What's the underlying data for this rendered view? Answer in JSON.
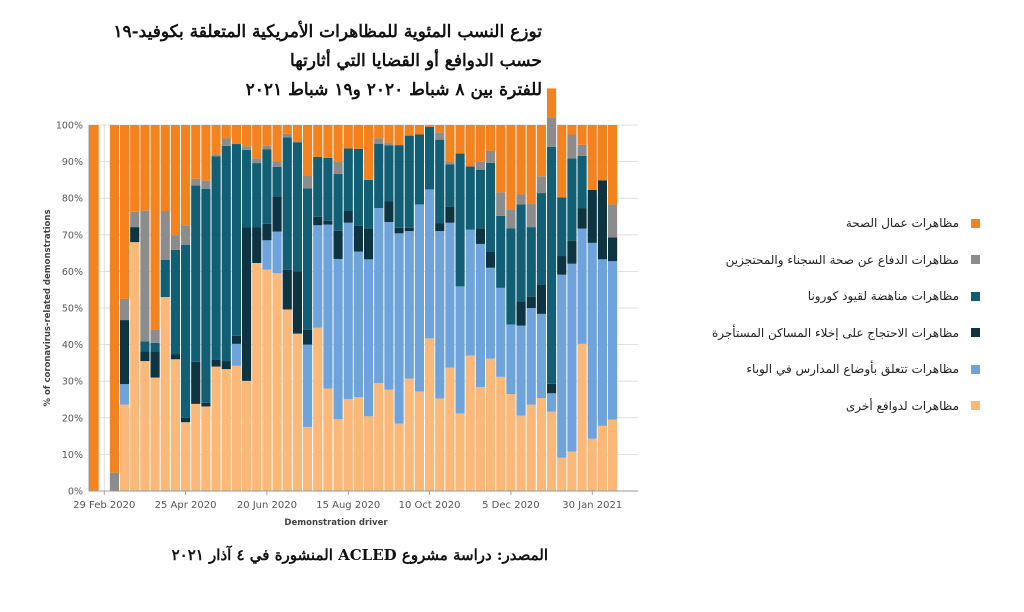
{
  "title": {
    "line1": "توزع النسب المئوية للمظاهرات الأمريكية المتعلقة بكوفيد-١٩",
    "line2": "حسب الدوافع أو القضايا التي أثارتها",
    "line3": "للفترة بين ٨ شباط ٢٠٢٠ و١٩ شباط ٢٠٢١"
  },
  "source": "المصدر: دراسة مشروع ACLED المنشورة في ٤ آذار ٢٠٢١",
  "legend": [
    {
      "label": "مظاهرات عمال الصحة",
      "color": "#F4821F"
    },
    {
      "label": "مظاهرات الدفاع عن صحة السجناء والمحتجزين",
      "color": "#8C8C8C"
    },
    {
      "label": "مظاهرات مناهضة لقيود كورونا",
      "color": "#115E75"
    },
    {
      "label": "مظاهرات الاحتجاج على إخلاء المساكن المستأجرة",
      "color": "#0D3440"
    },
    {
      "label": "مظاهرات تتعلق بأوضاع المدارس في الوباء",
      "color": "#6FA3DB"
    },
    {
      "label": "مظاهرات لدوافع أخرى",
      "color": "#FBB879"
    }
  ],
  "chart_data": {
    "type": "bar",
    "stacked": true,
    "normalized": true,
    "xlabel": "Demonstration driver",
    "ylabel": "% of coronavirus-related demonstrations",
    "ylim": [
      0,
      100
    ],
    "yticks": [
      "0%",
      "10%",
      "20%",
      "30%",
      "40%",
      "50%",
      "60%",
      "70%",
      "80%",
      "90%",
      "100%"
    ],
    "x_tick_labels": [
      "29 Feb 2020",
      "25 Apr 2020",
      "20 Jun 2020",
      "15 Aug 2020",
      "10 Oct 2020",
      "5 Dec 2020",
      "30 Jan 2021"
    ],
    "x_tick_positions": [
      1.5,
      9.5,
      17.5,
      25.5,
      33.5,
      41.5,
      49.5
    ],
    "grid": true,
    "num_weeks": 54,
    "series": [
      {
        "name": "مظاهرات لدوافع أخرى",
        "color": "#FBB879",
        "values": [
          0,
          0,
          0,
          23.6,
          68,
          35.5,
          31,
          53,
          36,
          18.8,
          23.8,
          23.1,
          34,
          33.3,
          34.2,
          30.1,
          62.3,
          60.5,
          59.5,
          49.6,
          43,
          17.5,
          44.6,
          28,
          19.6,
          25.1,
          25.6,
          20.4,
          29.5,
          27.7,
          18.4,
          30.7,
          27.2,
          41.7,
          25.3,
          33.7,
          21.2,
          37,
          28.4,
          36.2,
          31.2,
          26.5,
          20.6,
          23.6,
          25.4,
          21.7,
          9.1,
          10.8,
          40.2,
          14.3,
          17.8,
          19.5,
          0,
          0
        ]
      },
      {
        "name": "مظاهرات تتعلق بأوضاع المدارس في الوباء",
        "color": "#6FA3DB",
        "values": [
          0,
          0,
          0,
          5.6,
          0,
          0,
          0,
          0,
          0,
          0,
          0,
          0,
          0,
          0,
          6,
          0,
          0,
          8,
          11.4,
          0,
          0,
          22.5,
          28,
          44.8,
          43.8,
          48.2,
          39.8,
          42.9,
          47.8,
          45.8,
          52,
          40.3,
          51.1,
          40.7,
          45.7,
          39.6,
          34.7,
          34.4,
          39.1,
          24.8,
          24.3,
          19,
          24.6,
          26.4,
          23,
          5,
          50,
          51.3,
          31.5,
          53.5,
          45.5,
          43.3,
          0,
          0
        ]
      },
      {
        "name": "مظاهرات الاحتجاج على إخلاء المساكن المستأجرة",
        "color": "#0D3440",
        "values": [
          0,
          0,
          0,
          17.5,
          4.1,
          2.6,
          7.2,
          0,
          1.3,
          1.2,
          11.5,
          1,
          1.8,
          2.2,
          2.2,
          42,
          9.7,
          4.5,
          9.6,
          10.8,
          17,
          4,
          2.3,
          1,
          7.7,
          3.2,
          7.1,
          8.4,
          0,
          5.6,
          1.5,
          0.9,
          0,
          0,
          2.2,
          4.4,
          0,
          0,
          4.3,
          4.3,
          0,
          0,
          6.6,
          3.1,
          8,
          2.6,
          5.1,
          6.3,
          5.6,
          14.5,
          21.6,
          6.5,
          0,
          0
        ]
      },
      {
        "name": "مظاهرات مناهضة لقيود كورونا",
        "color": "#115E75",
        "values": [
          0,
          0,
          0,
          0,
          0,
          2.8,
          2.3,
          10.2,
          28.6,
          47.3,
          48.2,
          58.5,
          55.6,
          58.8,
          52.4,
          21.1,
          17.6,
          20.4,
          8.1,
          36.2,
          35.3,
          38.7,
          16.4,
          17.2,
          15.5,
          17.1,
          21,
          13.3,
          17.6,
          15.3,
          22.6,
          25.2,
          19.1,
          17.1,
          22.8,
          11.5,
          36.3,
          17.3,
          16,
          24.4,
          19.7,
          26.3,
          26.5,
          19,
          25,
          64.7,
          16,
          22.5,
          14.3,
          0,
          0,
          0,
          0,
          0
        ]
      },
      {
        "name": "مظاهرات الدفاع عن صحة السجناء والمحتجزين",
        "color": "#8C8C8C",
        "values": [
          0,
          0,
          5,
          5.8,
          4.2,
          35.7,
          3.6,
          13.3,
          4,
          5.3,
          1.8,
          2.2,
          0.6,
          2,
          0,
          1,
          1.3,
          0.9,
          1.3,
          1,
          0,
          3.6,
          0,
          0,
          3.4,
          0,
          0,
          0,
          1.5,
          0.8,
          0,
          0,
          0,
          0,
          2,
          0.8,
          0,
          0,
          2.1,
          3.3,
          6.4,
          5.2,
          2.7,
          6.3,
          4.6,
          8.1,
          0,
          6.5,
          3,
          0,
          0,
          9,
          0,
          0
        ]
      },
      {
        "name": "مظاهرات عمال الصحة",
        "color": "#F4821F",
        "values": [
          100,
          0,
          95,
          47.5,
          23.7,
          23.4,
          55.9,
          23.5,
          30.1,
          27.4,
          14.7,
          15.2,
          8,
          3.7,
          5.2,
          5.8,
          9.1,
          5.7,
          10.1,
          2.4,
          4.7,
          13.7,
          8.7,
          9,
          10,
          6.4,
          6.5,
          15,
          3.6,
          4.8,
          5.5,
          2.9,
          2.6,
          0.5,
          2,
          10,
          7.8,
          11.3,
          10.1,
          7,
          18.4,
          23,
          19,
          21.6,
          14,
          7.9,
          19.8,
          2.6,
          5.4,
          17.7,
          15.1,
          21.7,
          0,
          0
        ]
      }
    ]
  }
}
